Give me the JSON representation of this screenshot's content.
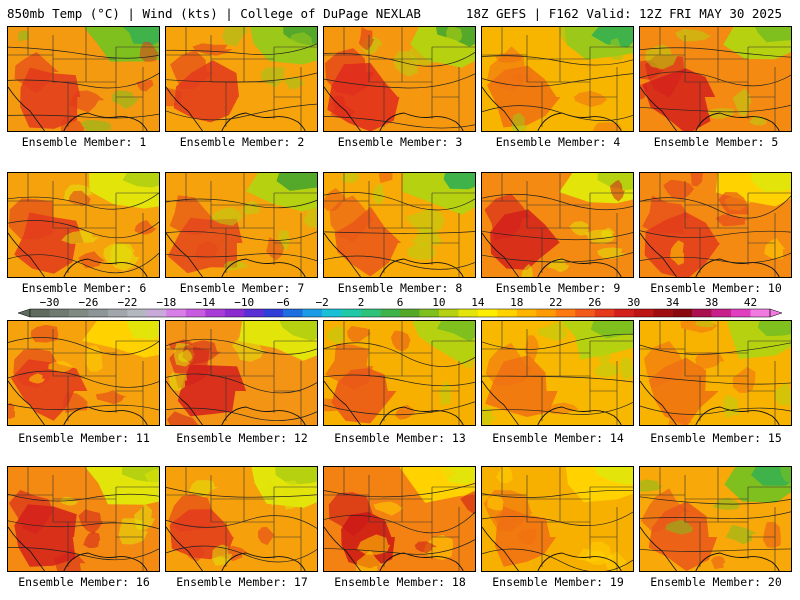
{
  "header": {
    "left": "850mb Temp (°C) | Wind (kts) | College of DuPage NEXLAB",
    "right": "18Z GEFS | F162 Valid: 12Z FRI MAY 30 2025"
  },
  "member_label_prefix": "Ensemble Member: ",
  "members": [
    1,
    2,
    3,
    4,
    5,
    6,
    7,
    8,
    9,
    10,
    11,
    12,
    13,
    14,
    15,
    16,
    17,
    18,
    19,
    20
  ],
  "member_labels": [
    "Ensemble Member: 1",
    "Ensemble Member: 2",
    "Ensemble Member: 3",
    "Ensemble Member: 4",
    "Ensemble Member: 5",
    "Ensemble Member: 6",
    "Ensemble Member: 7",
    "Ensemble Member: 8",
    "Ensemble Member: 9",
    "Ensemble Member: 10",
    "Ensemble Member: 11",
    "Ensemble Member: 12",
    "Ensemble Member: 13",
    "Ensemble Member: 14",
    "Ensemble Member: 15",
    "Ensemble Member: 16",
    "Ensemble Member: 17",
    "Ensemble Member: 18",
    "Ensemble Member: 19",
    "Ensemble Member: 20"
  ],
  "colorbar": {
    "tick_labels": [
      "−30",
      "−26",
      "−22",
      "−18",
      "−14",
      "−10",
      "−6",
      "−2",
      "2",
      "6",
      "10",
      "14",
      "18",
      "22",
      "26",
      "30",
      "34",
      "38",
      "42"
    ],
    "min": -32,
    "max": 44,
    "colors": [
      "#5e6b5e",
      "#6f7a70",
      "#808a82",
      "#8e9596",
      "#a0a6aa",
      "#b3b8c0",
      "#c9a9d9",
      "#d77fe6",
      "#c95be0",
      "#a73dd6",
      "#8a2cd0",
      "#5b2fd6",
      "#2f3fd8",
      "#1d6fe0",
      "#1b9ae6",
      "#18c0d6",
      "#1fc9a8",
      "#2cc27a",
      "#3fb34a",
      "#55a92a",
      "#7fbf1e",
      "#b6d10f",
      "#e2e40a",
      "#ffee00",
      "#ffd200",
      "#ffb400",
      "#ff9a00",
      "#ff7a10",
      "#f45a1a",
      "#e63a1c",
      "#d4201c",
      "#bd1414",
      "#a00d10",
      "#8a0810",
      "#aa1050",
      "#c8208a",
      "#e040c0",
      "#f07ae0"
    ]
  },
  "panel_temps": [
    {
      "base": "#f49a10",
      "hot": "#e23a1c",
      "cool": "#7fbf1e",
      "cold": "#3fb34a"
    },
    {
      "base": "#f6a30c",
      "hot": "#e23a1c",
      "cool": "#9cc81a",
      "cold": "#55a92a"
    },
    {
      "base": "#f59810",
      "hot": "#e02a1c",
      "cool": "#b6d10f",
      "cold": "#55a92a"
    },
    {
      "base": "#f8b500",
      "hot": "#f07012",
      "cool": "#9cc81a",
      "cold": "#3fb34a"
    },
    {
      "base": "#f48a12",
      "hot": "#d4201c",
      "cool": "#b6d10f",
      "cold": "#7fbf1e"
    },
    {
      "base": "#f6a20c",
      "hot": "#e23a1c",
      "cool": "#e2e40a",
      "cold": "#b6d10f"
    },
    {
      "base": "#f6a20c",
      "hot": "#e4461c",
      "cool": "#b6d10f",
      "cold": "#55a92a"
    },
    {
      "base": "#f8aa06",
      "hot": "#ea561a",
      "cool": "#b6d10f",
      "cold": "#3fb34a"
    },
    {
      "base": "#f48a12",
      "hot": "#d4201c",
      "cool": "#e2e40a",
      "cold": "#b6d10f"
    },
    {
      "base": "#f48a12",
      "hot": "#e23a1c",
      "cool": "#ffd200",
      "cold": "#e2e40a"
    },
    {
      "base": "#f6a20c",
      "hot": "#e23a1c",
      "cool": "#ffd200",
      "cold": "#e2e40a"
    },
    {
      "base": "#f49414",
      "hot": "#d4201c",
      "cool": "#e2e40a",
      "cold": "#b6d10f"
    },
    {
      "base": "#f8b000",
      "hot": "#ea561a",
      "cool": "#b6d10f",
      "cold": "#7fbf1e"
    },
    {
      "base": "#f8b800",
      "hot": "#f07012",
      "cool": "#b6d10f",
      "cold": "#7fbf1e"
    },
    {
      "base": "#f8b200",
      "hot": "#f07012",
      "cool": "#b6d10f",
      "cold": "#7fbf1e"
    },
    {
      "base": "#f48a12",
      "hot": "#d4201c",
      "cool": "#e2e40a",
      "cold": "#b6d10f"
    },
    {
      "base": "#f6a00c",
      "hot": "#e23a1c",
      "cool": "#e2e40a",
      "cold": "#b6d10f"
    },
    {
      "base": "#f48212",
      "hot": "#cc1818",
      "cool": "#ffd200",
      "cold": "#e2e40a"
    },
    {
      "base": "#f8b000",
      "hot": "#f07012",
      "cool": "#ffd200",
      "cold": "#e2e40a"
    },
    {
      "base": "#f8a808",
      "hot": "#ea561a",
      "cool": "#7fbf1e",
      "cold": "#3fb34a"
    }
  ]
}
